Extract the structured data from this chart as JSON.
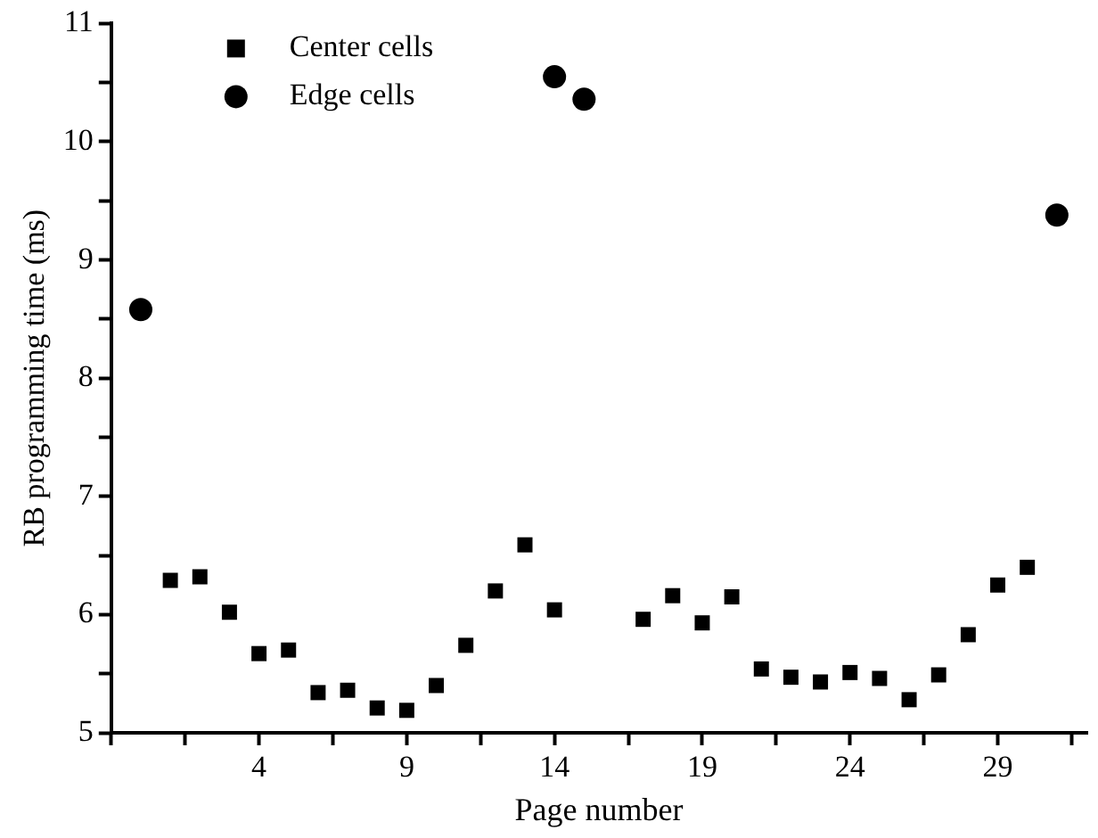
{
  "chart_data": {
    "type": "scatter",
    "xlabel": "Page number",
    "ylabel": "RB programming time (ms)",
    "xlim": [
      -1,
      32
    ],
    "xticks": [
      {
        "value": -1,
        "label": null
      },
      {
        "value": 1.5,
        "label": null
      },
      4,
      {
        "value": 6.5,
        "label": null
      },
      9,
      {
        "value": 11.5,
        "label": null
      },
      14,
      {
        "value": 16.5,
        "label": null
      },
      19,
      {
        "value": 21.5,
        "label": null
      },
      24,
      {
        "value": 26.5,
        "label": null
      },
      29,
      {
        "value": 31.5,
        "label": null
      }
    ],
    "ylim": [
      5,
      11
    ],
    "yticks": [
      5,
      {
        "value": 5.5,
        "label": null
      },
      6,
      {
        "value": 6.5,
        "label": null
      },
      7,
      {
        "value": 7.5,
        "label": null
      },
      8,
      {
        "value": 8.5,
        "label": null
      },
      9,
      {
        "value": 9.5,
        "label": null
      },
      10,
      {
        "value": 10.5,
        "label": null
      },
      11
    ],
    "grid": false,
    "legend": "top left",
    "series": [
      {
        "name": "Center cells",
        "color": "#000000",
        "marker": "square",
        "x": [
          1,
          2,
          3,
          4,
          5,
          6,
          7,
          8,
          9,
          10,
          11,
          12,
          13,
          14,
          17,
          18,
          19,
          20,
          21,
          22,
          23,
          24,
          25,
          26,
          27,
          28,
          29,
          30
        ],
        "values": [
          6.29,
          6.32,
          6.02,
          5.67,
          5.7,
          5.34,
          5.36,
          5.21,
          5.19,
          5.4,
          5.74,
          6.2,
          6.59,
          6.04,
          5.96,
          6.16,
          5.93,
          6.15,
          5.54,
          5.47,
          5.43,
          5.51,
          5.46,
          5.28,
          5.49,
          5.83,
          6.25,
          6.4
        ]
      },
      {
        "name": "Edge cells",
        "color": "#000000",
        "marker": "circle",
        "x": [
          0,
          14,
          15,
          31
        ],
        "values": [
          8.58,
          10.55,
          10.36,
          9.38
        ]
      }
    ]
  }
}
